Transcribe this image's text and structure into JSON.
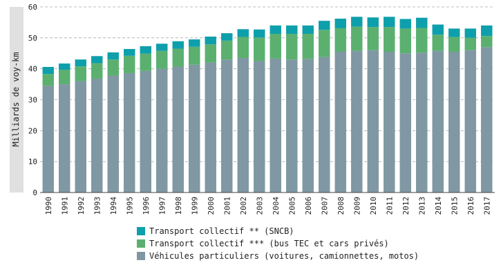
{
  "chart_data": {
    "type": "bar",
    "stacked": true,
    "title": "",
    "xlabel": "",
    "ylabel": "Milliards de voy-km",
    "ylim": [
      0,
      60
    ],
    "yticks": [
      0,
      10,
      20,
      30,
      40,
      50,
      60
    ],
    "grid": "horizontal dashed",
    "legend_position": "bottom",
    "categories": [
      "1990",
      "1991",
      "1992",
      "1993",
      "1994",
      "1995",
      "1996",
      "1997",
      "1998",
      "1999",
      "2000",
      "2001",
      "2002",
      "2003",
      "2004",
      "2005",
      "2006",
      "2007",
      "2008",
      "2009",
      "2010",
      "2011",
      "2012",
      "2013",
      "2014",
      "2015",
      "2016",
      "2017"
    ],
    "series": [
      {
        "name": "Véhicules particuliers (voitures, camionnettes, motos)",
        "color": "#7f98a3",
        "values": [
          34.5,
          35.0,
          36.0,
          36.8,
          37.8,
          38.6,
          39.3,
          40.0,
          40.7,
          41.3,
          42.0,
          43.0,
          43.5,
          42.5,
          43.3,
          43.0,
          43.2,
          43.8,
          45.5,
          45.8,
          46.0,
          45.5,
          45.0,
          45.2,
          45.8,
          45.5,
          46.0,
          47.0
        ]
      },
      {
        "name": "Transport collectif *** (bus TEC et cars privés)",
        "color": "#5bb070",
        "values": [
          3.8,
          4.7,
          4.8,
          5.0,
          5.2,
          5.6,
          5.6,
          5.8,
          5.8,
          5.8,
          5.9,
          6.1,
          6.8,
          7.6,
          8.0,
          8.3,
          8.1,
          8.8,
          7.6,
          7.8,
          7.5,
          8.0,
          8.0,
          8.0,
          5.2,
          4.8,
          4.0,
          3.6
        ]
      },
      {
        "name": "Transport collectif ** (SNCB)",
        "color": "#0e9fac",
        "values": [
          2.3,
          2.0,
          2.2,
          2.3,
          2.3,
          2.2,
          2.4,
          2.3,
          2.4,
          2.4,
          2.5,
          2.4,
          2.5,
          2.6,
          2.7,
          2.7,
          2.7,
          2.9,
          3.1,
          3.2,
          3.1,
          3.3,
          3.1,
          3.3,
          3.3,
          2.7,
          3.0,
          3.4
        ]
      }
    ]
  }
}
